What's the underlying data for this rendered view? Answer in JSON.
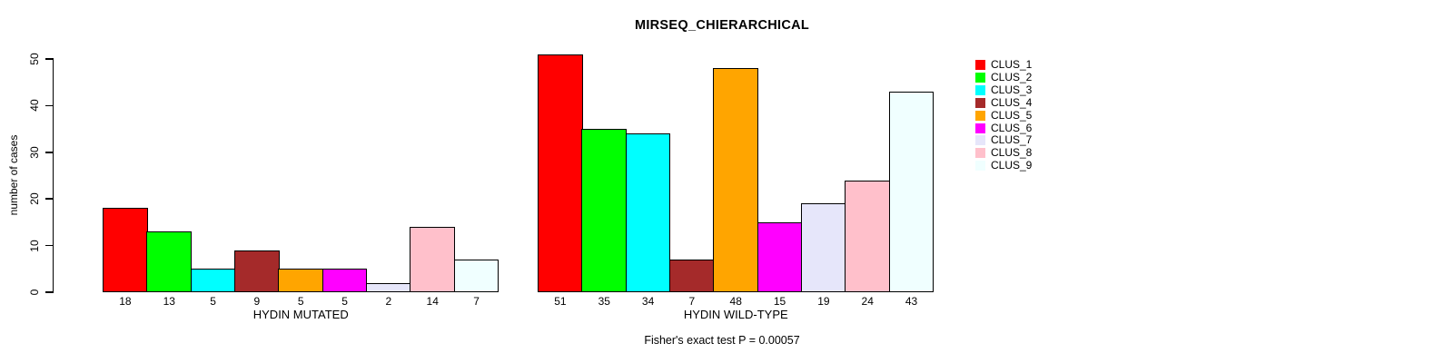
{
  "chart_data": {
    "type": "bar",
    "title": "MIRSEQ_CHIERARCHICAL",
    "ylabel": "number of cases",
    "ylim": [
      0,
      50
    ],
    "yticks": [
      0,
      10,
      20,
      30,
      40,
      50
    ],
    "grid": false,
    "legend_position": "right",
    "bar_value_labels": true,
    "categories": [
      "HYDIN MUTATED",
      "HYDIN WILD-TYPE"
    ],
    "series": [
      {
        "name": "CLUS_1",
        "color": "#FF0000",
        "values": [
          18,
          51
        ]
      },
      {
        "name": "CLUS_2",
        "color": "#00FF00",
        "values": [
          13,
          35
        ]
      },
      {
        "name": "CLUS_3",
        "color": "#00FFFF",
        "values": [
          5,
          34
        ]
      },
      {
        "name": "CLUS_4",
        "color": "#A52A2A",
        "values": [
          9,
          7
        ]
      },
      {
        "name": "CLUS_5",
        "color": "#FFA500",
        "values": [
          5,
          48
        ]
      },
      {
        "name": "CLUS_6",
        "color": "#FF00FF",
        "values": [
          5,
          15
        ]
      },
      {
        "name": "CLUS_7",
        "color": "#E6E6FA",
        "values": [
          2,
          19
        ]
      },
      {
        "name": "CLUS_8",
        "color": "#FFC0CB",
        "values": [
          14,
          24
        ]
      },
      {
        "name": "CLUS_9",
        "color": "#F0FFFF",
        "values": [
          7,
          43
        ]
      }
    ],
    "annotation": "Fisher's exact test P = 0.00057"
  }
}
